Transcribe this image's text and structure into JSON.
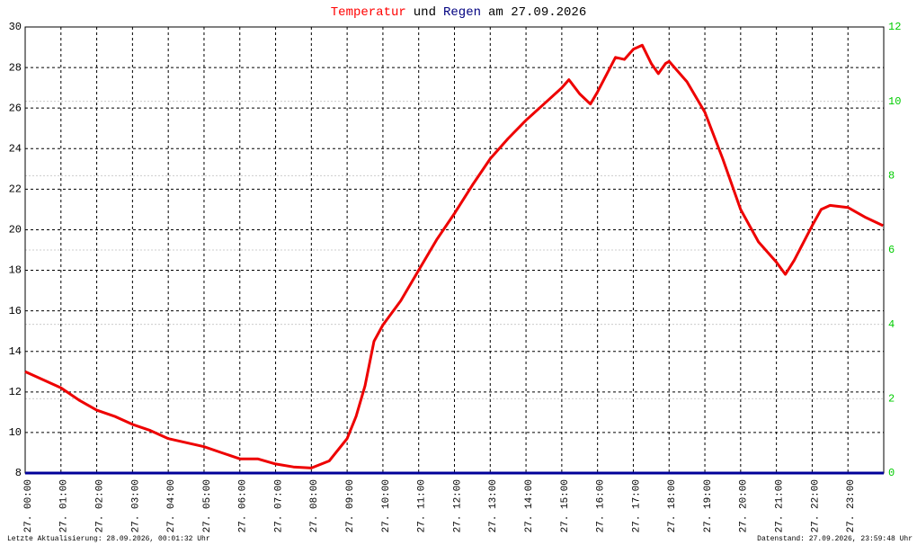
{
  "chart_data": {
    "type": "line",
    "title_parts": [
      "Temperatur",
      "und",
      "Regen",
      "am 27.09.2026"
    ],
    "title_colors": [
      "#ff0000",
      "#000000",
      "#000080",
      "#000000"
    ],
    "xlim": [
      0,
      24
    ],
    "xticks": [
      {
        "value": 0,
        "label": "27. 00:00"
      },
      {
        "value": 1,
        "label": "27. 01:00"
      },
      {
        "value": 2,
        "label": "27. 02:00"
      },
      {
        "value": 3,
        "label": "27. 03:00"
      },
      {
        "value": 4,
        "label": "27. 04:00"
      },
      {
        "value": 5,
        "label": "27. 05:00"
      },
      {
        "value": 6,
        "label": "27. 06:00"
      },
      {
        "value": 7,
        "label": "27. 07:00"
      },
      {
        "value": 8,
        "label": "27. 08:00"
      },
      {
        "value": 9,
        "label": "27. 09:00"
      },
      {
        "value": 10,
        "label": "27. 10:00"
      },
      {
        "value": 11,
        "label": "27. 11:00"
      },
      {
        "value": 12,
        "label": "27. 12:00"
      },
      {
        "value": 13,
        "label": "27. 13:00"
      },
      {
        "value": 14,
        "label": "27. 14:00"
      },
      {
        "value": 15,
        "label": "27. 15:00"
      },
      {
        "value": 16,
        "label": "27. 16:00"
      },
      {
        "value": 17,
        "label": "27. 17:00"
      },
      {
        "value": 18,
        "label": "27. 18:00"
      },
      {
        "value": 19,
        "label": "27. 19:00"
      },
      {
        "value": 20,
        "label": "27. 20:00"
      },
      {
        "value": 21,
        "label": "27. 21:00"
      },
      {
        "value": 22,
        "label": "27. 22:00"
      },
      {
        "value": 23,
        "label": "27. 23:00"
      }
    ],
    "ylim": [
      8,
      30
    ],
    "yticks": [
      8,
      10,
      12,
      14,
      16,
      18,
      20,
      22,
      24,
      26,
      28,
      30
    ],
    "y2lim": [
      0,
      12
    ],
    "y2ticks": [
      0,
      2,
      4,
      6,
      8,
      10,
      12
    ],
    "y2_color": "#00cc00",
    "grid": true,
    "series": [
      {
        "color": "#ee0000",
        "x": [
          0,
          0.5,
          1,
          1.5,
          2,
          2.5,
          3,
          3.5,
          4,
          4.5,
          5,
          5.5,
          6,
          6.5,
          7,
          7.5,
          8,
          8.5,
          9,
          9.25,
          9.5,
          9.75,
          10,
          10.5,
          11,
          11.5,
          12,
          12.5,
          13,
          13.5,
          14,
          14.5,
          15,
          15.2,
          15.5,
          15.8,
          16,
          16.5,
          16.75,
          17,
          17.25,
          17.5,
          17.7,
          17.9,
          18,
          18.5,
          19,
          19.5,
          20,
          20.5,
          21,
          21.25,
          21.5,
          22,
          22.25,
          22.5,
          23,
          23.5,
          23.98
        ],
        "values": [
          13.0,
          12.6,
          12.2,
          11.6,
          11.1,
          10.8,
          10.4,
          10.1,
          9.7,
          9.5,
          9.3,
          9.0,
          8.7,
          8.7,
          8.45,
          8.3,
          8.25,
          8.6,
          9.7,
          10.8,
          12.3,
          14.5,
          15.3,
          16.5,
          18.0,
          19.5,
          20.8,
          22.2,
          23.5,
          24.5,
          25.4,
          26.2,
          27.0,
          27.4,
          26.7,
          26.2,
          26.8,
          28.5,
          28.4,
          28.9,
          29.1,
          28.2,
          27.7,
          28.2,
          28.3,
          27.3,
          25.8,
          23.5,
          21.0,
          19.4,
          18.4,
          17.8,
          18.5,
          20.2,
          21.0,
          21.2,
          21.1,
          20.6,
          20.2
        ]
      },
      {
        "color": "#000099",
        "axis": "y2",
        "x": [
          0,
          24
        ],
        "values": [
          0,
          0
        ]
      }
    ]
  },
  "footer": {
    "left": "Letzte Aktualisierung: 28.09.2026, 00:01:32 Uhr",
    "right": "Datenstand: 27.09.2026, 23:59:48 Uhr"
  }
}
